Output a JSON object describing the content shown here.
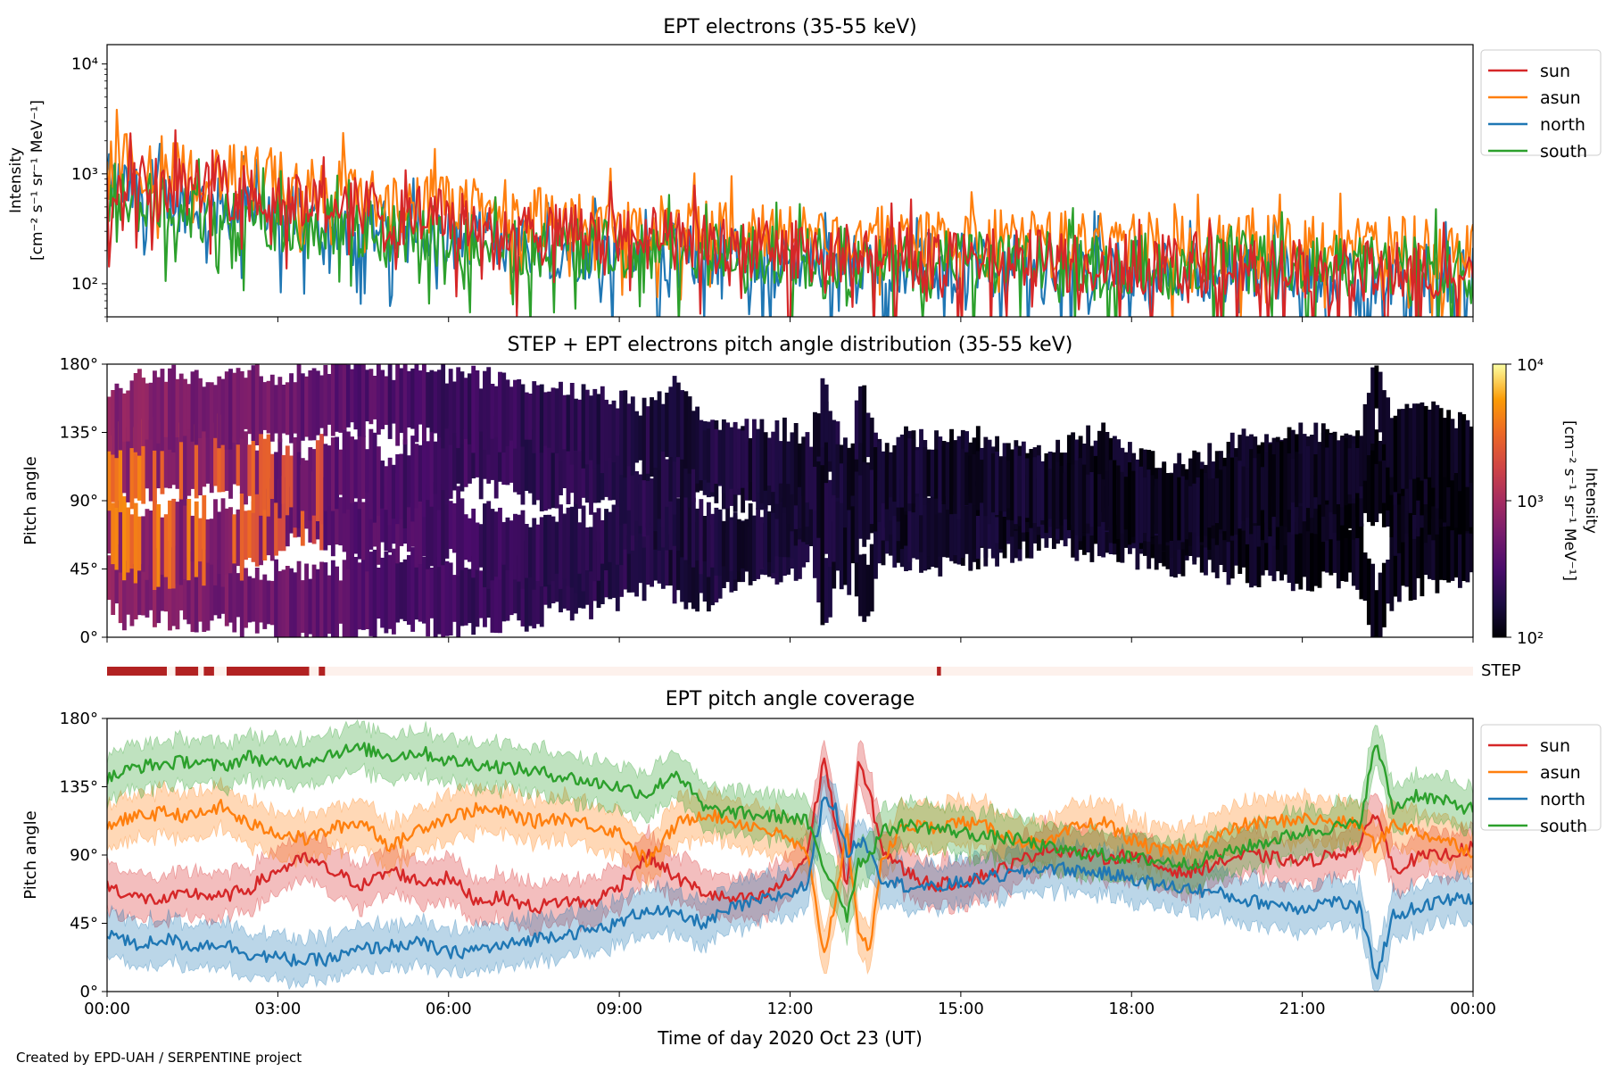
{
  "credit": "Created by EPD-UAH / SERPENTINE project",
  "chart_data": [
    {
      "type": "line",
      "title": "EPT electrons (35-55 keV)",
      "ylabel_lines": [
        "Intensity",
        "[cm⁻² s⁻¹ sr⁻¹ MeV⁻¹]"
      ],
      "yscale": "log",
      "ylim": [
        50,
        15000
      ],
      "yticks": [
        {
          "value": 100,
          "label": "10²"
        },
        {
          "value": 1000,
          "label": "10³"
        },
        {
          "value": 10000,
          "label": "10⁴"
        }
      ],
      "xlim_hours": [
        0,
        24
      ],
      "legend_position": "outside-right",
      "series": [
        {
          "name": "sun",
          "color": "#d62728",
          "values": [
            1000,
            850,
            700,
            650,
            520,
            430,
            380,
            320,
            290,
            260,
            240,
            220,
            200,
            185,
            175,
            170,
            165,
            160,
            150,
            145,
            140,
            135,
            130,
            125,
            120
          ]
        },
        {
          "name": "asun",
          "color": "#ff7f0e",
          "values": [
            1300,
            1200,
            1000,
            900,
            720,
            600,
            500,
            430,
            380,
            350,
            320,
            300,
            280,
            270,
            260,
            255,
            250,
            245,
            240,
            235,
            230,
            225,
            220,
            215,
            210
          ]
        },
        {
          "name": "north",
          "color": "#1f77b4",
          "values": [
            800,
            600,
            480,
            420,
            360,
            300,
            260,
            230,
            210,
            195,
            185,
            175,
            165,
            160,
            155,
            150,
            145,
            140,
            135,
            130,
            128,
            125,
            122,
            120,
            118
          ]
        },
        {
          "name": "south",
          "color": "#2ca02c",
          "values": [
            700,
            520,
            420,
            380,
            330,
            290,
            255,
            230,
            215,
            200,
            190,
            182,
            175,
            170,
            165,
            160,
            158,
            155,
            152,
            150,
            148,
            146,
            144,
            142,
            140
          ]
        }
      ]
    },
    {
      "type": "heatmap",
      "title": "STEP + EPT electrons pitch angle distribution (35-55 keV)",
      "ylabel": "Pitch angle",
      "ylim": [
        0,
        180
      ],
      "yticks": [
        {
          "value": 0,
          "label": "0°"
        },
        {
          "value": 45,
          "label": "45°"
        },
        {
          "value": 90,
          "label": "90°"
        },
        {
          "value": 135,
          "label": "135°"
        },
        {
          "value": 180,
          "label": "180°"
        }
      ],
      "xlim_hours": [
        0,
        24
      ],
      "colorbar": {
        "label_lines": [
          "Intensity",
          "[cm⁻² s⁻¹ sr⁻¹ MeV⁻¹]"
        ],
        "scale": "log",
        "range": [
          100,
          10000
        ],
        "ticks": [
          {
            "value": 100,
            "label": "10²"
          },
          {
            "value": 1000,
            "label": "10³"
          },
          {
            "value": 10000,
            "label": "10⁴"
          }
        ],
        "colormap": "inferno"
      }
    },
    {
      "type": "bar",
      "label": "STEP",
      "xlim_hours": [
        0,
        24
      ],
      "active_color": "#b22222",
      "inactive_color": "#fdf1ec",
      "active_intervals_hours": [
        [
          0,
          1.05
        ],
        [
          1.2,
          1.6
        ],
        [
          1.7,
          1.88
        ],
        [
          2.1,
          3.55
        ],
        [
          3.72,
          3.83
        ],
        [
          14.58,
          14.65
        ]
      ]
    },
    {
      "type": "line",
      "title": "EPT pitch angle coverage",
      "ylabel": "Pitch angle",
      "xlabel": "Time of day 2020 Oct 23 (UT)",
      "ylim": [
        0,
        180
      ],
      "yticks": [
        {
          "value": 0,
          "label": "0°"
        },
        {
          "value": 45,
          "label": "45°"
        },
        {
          "value": 90,
          "label": "90°"
        },
        {
          "value": 135,
          "label": "135°"
        },
        {
          "value": 180,
          "label": "180°"
        }
      ],
      "xlim_hours": [
        0,
        24
      ],
      "xticks": [
        {
          "value": 0,
          "label": "00:00"
        },
        {
          "value": 3,
          "label": "03:00"
        },
        {
          "value": 6,
          "label": "06:00"
        },
        {
          "value": 9,
          "label": "09:00"
        },
        {
          "value": 12,
          "label": "12:00"
        },
        {
          "value": 15,
          "label": "15:00"
        },
        {
          "value": 18,
          "label": "18:00"
        },
        {
          "value": 21,
          "label": "21:00"
        },
        {
          "value": 24,
          "label": "00:00"
        }
      ],
      "legend_position": "outside-right",
      "band_halfwidth_deg": 15,
      "series": [
        {
          "name": "sun",
          "color": "#d62728",
          "x": [
            0,
            0.5,
            1,
            1.5,
            2,
            2.5,
            3,
            3.5,
            4,
            4.5,
            5,
            5.5,
            6,
            6.5,
            7,
            7.5,
            8,
            8.5,
            9,
            9.5,
            10,
            10.5,
            11,
            11.5,
            12,
            12.3,
            12.6,
            12.8,
            13,
            13.2,
            13.4,
            13.6,
            14,
            14.5,
            15,
            15.5,
            16,
            16.5,
            17,
            17.5,
            18,
            18.5,
            19,
            19.5,
            20,
            20.5,
            21,
            21.5,
            22,
            22.3,
            22.6,
            23,
            23.5,
            24
          ],
          "y": [
            70,
            62,
            60,
            65,
            62,
            68,
            80,
            88,
            78,
            70,
            80,
            72,
            75,
            60,
            62,
            55,
            60,
            58,
            70,
            90,
            75,
            65,
            60,
            62,
            75,
            90,
            155,
            110,
            70,
            150,
            130,
            95,
            80,
            70,
            72,
            78,
            85,
            95,
            92,
            88,
            90,
            82,
            78,
            85,
            90,
            88,
            85,
            90,
            95,
            120,
            80,
            88,
            90,
            95
          ]
        },
        {
          "name": "asun",
          "color": "#ff7f0e",
          "x": [
            0,
            0.5,
            1,
            1.5,
            2,
            2.5,
            3,
            3.5,
            4,
            4.5,
            5,
            5.5,
            6,
            6.5,
            7,
            7.5,
            8,
            8.5,
            9,
            9.5,
            10,
            10.5,
            11,
            11.5,
            12,
            12.3,
            12.6,
            12.8,
            13,
            13.2,
            13.4,
            13.6,
            14,
            14.5,
            15,
            15.5,
            16,
            16.5,
            17,
            17.5,
            18,
            18.5,
            19,
            19.5,
            20,
            20.5,
            21,
            21.5,
            22,
            22.3,
            22.6,
            23,
            23.5,
            24
          ],
          "y": [
            110,
            115,
            118,
            115,
            122,
            110,
            105,
            100,
            108,
            112,
            95,
            108,
            115,
            120,
            118,
            112,
            115,
            110,
            105,
            85,
            110,
            118,
            112,
            108,
            100,
            90,
            25,
            60,
            110,
            35,
            30,
            85,
            110,
            108,
            112,
            108,
            100,
            96,
            108,
            112,
            100,
            92,
            95,
            102,
            110,
            112,
            114,
            112,
            110,
            95,
            112,
            105,
            100,
            92
          ]
        },
        {
          "name": "north",
          "color": "#1f77b4",
          "x": [
            0,
            0.5,
            1,
            1.5,
            2,
            2.5,
            3,
            3.5,
            4,
            4.5,
            5,
            5.5,
            6,
            6.5,
            7,
            7.5,
            8,
            8.5,
            9,
            9.5,
            10,
            10.5,
            11,
            11.5,
            12,
            12.3,
            12.6,
            12.8,
            13,
            13.2,
            13.4,
            13.6,
            14,
            14.5,
            15,
            15.5,
            16,
            16.5,
            17,
            17.5,
            18,
            18.5,
            19,
            19.5,
            20,
            20.5,
            21,
            21.5,
            22,
            22.3,
            22.6,
            23,
            23.5,
            24
          ],
          "y": [
            40,
            30,
            35,
            30,
            32,
            25,
            22,
            20,
            22,
            28,
            30,
            32,
            25,
            28,
            30,
            35,
            38,
            40,
            45,
            55,
            50,
            45,
            55,
            60,
            65,
            70,
            130,
            120,
            90,
            100,
            95,
            75,
            70,
            68,
            72,
            75,
            78,
            82,
            80,
            78,
            75,
            70,
            68,
            65,
            60,
            58,
            55,
            60,
            55,
            10,
            50,
            55,
            60,
            62
          ]
        },
        {
          "name": "south",
          "color": "#2ca02c",
          "x": [
            0,
            0.5,
            1,
            1.5,
            2,
            2.5,
            3,
            3.5,
            4,
            4.5,
            5,
            5.5,
            6,
            6.5,
            7,
            7.5,
            8,
            8.5,
            9,
            9.5,
            10,
            10.5,
            11,
            11.5,
            12,
            12.3,
            12.6,
            12.8,
            13,
            13.2,
            13.4,
            13.6,
            14,
            14.5,
            15,
            15.5,
            16,
            16.5,
            17,
            17.5,
            18,
            18.5,
            19,
            19.5,
            20,
            20.5,
            21,
            21.5,
            22,
            22.3,
            22.6,
            23,
            23.5,
            24
          ],
          "y": [
            140,
            148,
            150,
            152,
            148,
            155,
            150,
            152,
            158,
            160,
            155,
            158,
            152,
            150,
            148,
            145,
            142,
            138,
            135,
            130,
            145,
            120,
            118,
            116,
            115,
            112,
            80,
            70,
            50,
            85,
            90,
            105,
            110,
            108,
            105,
            102,
            100,
            95,
            92,
            90,
            88,
            86,
            84,
            90,
            95,
            100,
            105,
            108,
            110,
            165,
            120,
            130,
            125,
            120
          ]
        }
      ]
    }
  ]
}
